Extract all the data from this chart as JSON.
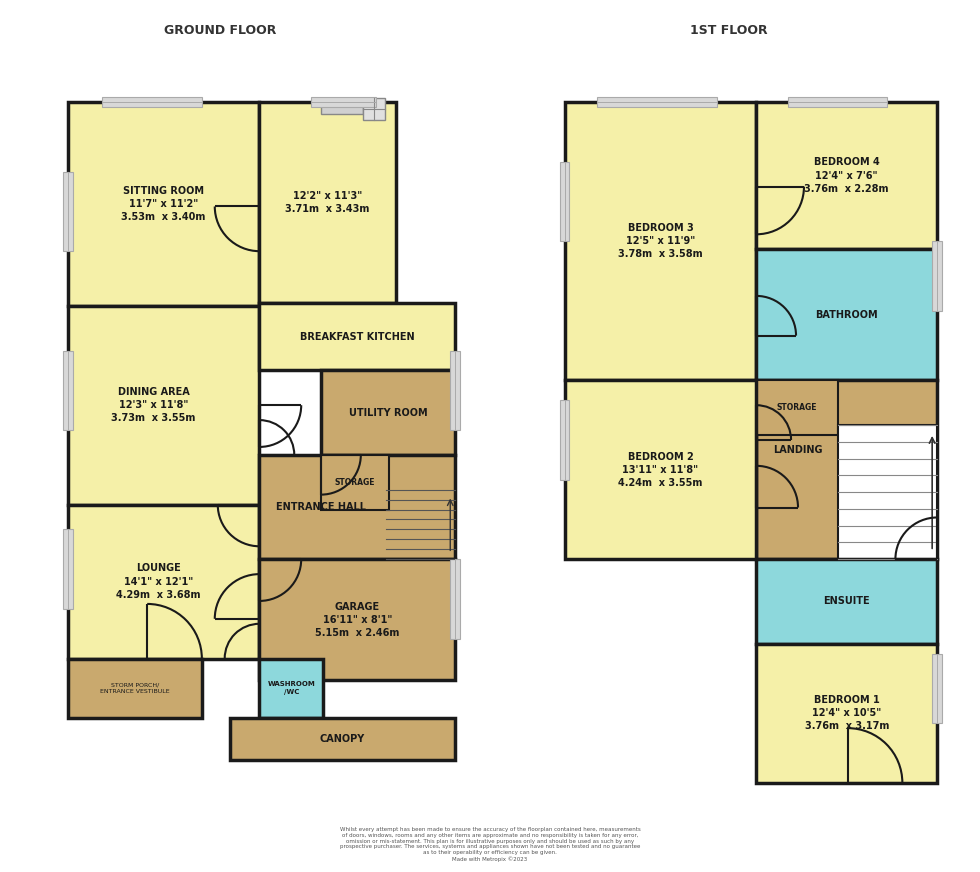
{
  "background_color": "#ffffff",
  "colors": {
    "yellow": "#f5f0a8",
    "tan": "#c9a96e",
    "blue": "#8dd8dc",
    "gray": "#c0c0c0",
    "white": "#ffffff",
    "light_gray": "#d0d0d0",
    "dark": "#1a1a1a"
  },
  "title_ground": "GROUND FLOOR",
  "title_first": "1ST FLOOR",
  "footer": "Whilst every attempt has been made to ensure the accuracy of the floorplan contained here, measurements\nof doors, windows, rooms and any other items are approximate and no responsibility is taken for any error,\nomission or mis-statement. This plan is for illustrative purposes only and should be used as such by any\nprospective purchaser. The services, systems and appliances shown have not been tested and no guarantee\nas to their operability or efficiency can be given.\nMade with Metropix ©2023"
}
